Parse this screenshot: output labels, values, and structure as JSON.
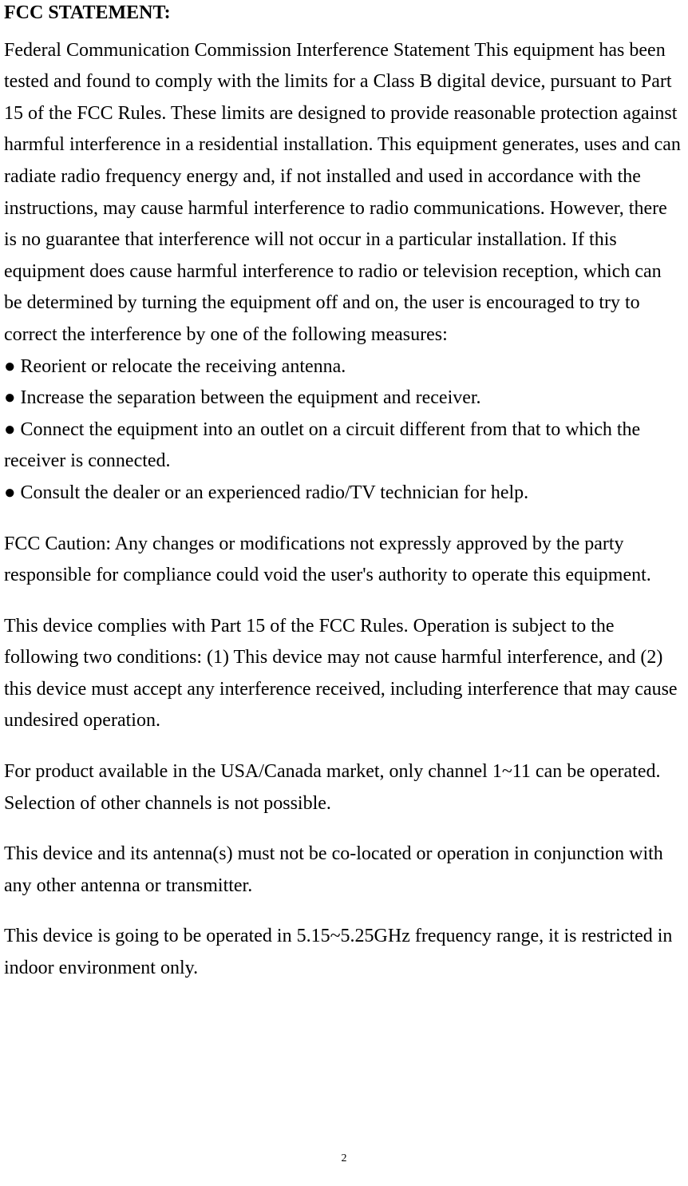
{
  "heading": "FCC STATEMENT:",
  "para1": "Federal Communication Commission Interference Statement This equipment has been tested and found to comply with the limits for a Class B digital device, pursuant to Part 15 of the FCC Rules. These limits are designed to provide reasonable protection against harmful interference in a residential installation. This equipment generates, uses and can radiate radio frequency energy and, if not installed and used in accordance with the instructions, may cause harmful interference to radio communications. However, there is no guarantee that interference will not occur in a particular installation. If this equipment does cause harmful interference to radio or television reception, which can be determined by turning the equipment off and on, the user is encouraged to try to correct the interference by one of the following measures:",
  "bullet1": "● Reorient or relocate the receiving antenna.",
  "bullet2": "● Increase the separation between the equipment and receiver.",
  "bullet3": "● Connect the equipment into an outlet on a circuit different from that to which the receiver is connected.",
  "bullet4": "● Consult the dealer or an experienced radio/TV technician for help.",
  "para2": "FCC Caution: Any changes or modifications not expressly approved by the party responsible for compliance could void the user's authority to operate this equipment.",
  "para3": "This device complies with Part 15 of the FCC Rules. Operation is subject to the following two conditions: (1) This device may not cause harmful interference, and (2) this device must accept any interference received, including interference that may cause undesired operation.",
  "para4": "For product available in the USA/Canada market, only channel 1~11 can be operated. Selection of other channels is not possible.",
  "para5": "This device and its antenna(s) must not be co-located or operation in conjunction with any other antenna or transmitter.",
  "para6": "This device is going to be operated in 5.15~5.25GHz frequency range, it is restricted in indoor environment only.",
  "pageNumber": "2",
  "colors": {
    "text": "#000000",
    "background": "#ffffff"
  },
  "typography": {
    "body_fontsize": 24,
    "body_family": "Times New Roman",
    "pagenum_fontsize": 14,
    "line_height": 1.65
  }
}
